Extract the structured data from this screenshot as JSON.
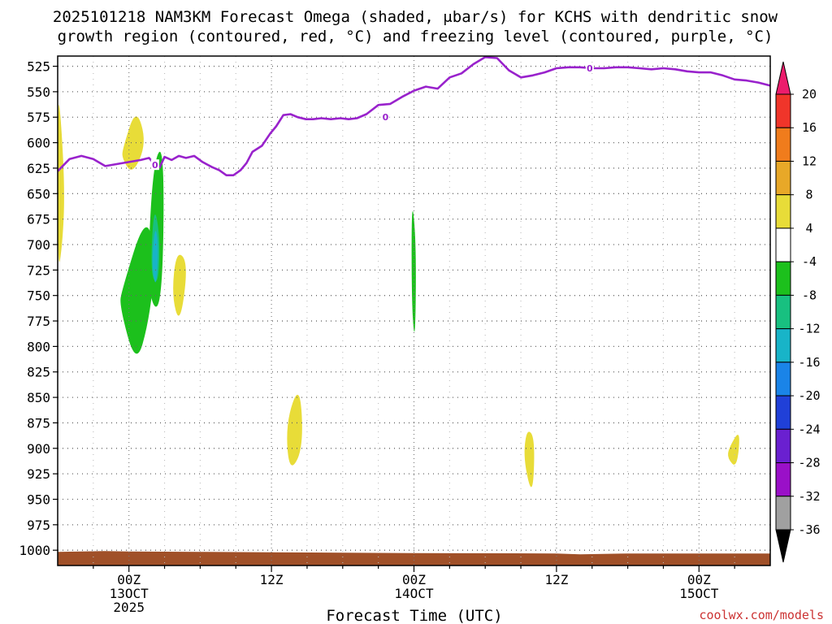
{
  "chart_data": {
    "type": "time-height contour",
    "title": "2025101218 NAM3KM Forecast Omega (shaded, μbar/s) for KCHS with dendritic snow growth region (contoured, red, °C) and freezing level (contoured, purple, °C)",
    "title_lines": [
      "2025101218 NAM3KM Forecast Omega (shaded, μbar/s) for KCHS with dendritic snow",
      "growth region (contoured, red, °C) and freezing level (contoured, purple, °C)"
    ],
    "xlabel": "Forecast Time (UTC)",
    "xlim_hours": [
      18,
      78
    ],
    "ylim_hpa": [
      1015,
      515
    ],
    "x_ticks": [
      {
        "hour": 24,
        "label": "00Z",
        "sub": "13OCT",
        "sub2": "2025"
      },
      {
        "hour": 36,
        "label": "12Z",
        "sub": "",
        "sub2": ""
      },
      {
        "hour": 48,
        "label": "00Z",
        "sub": "14OCT",
        "sub2": ""
      },
      {
        "hour": 60,
        "label": "12Z",
        "sub": "",
        "sub2": ""
      },
      {
        "hour": 72,
        "label": "00Z",
        "sub": "15OCT",
        "sub2": ""
      }
    ],
    "y_ticks": [
      525,
      550,
      575,
      600,
      625,
      650,
      675,
      700,
      725,
      750,
      775,
      800,
      825,
      850,
      875,
      900,
      925,
      950,
      975,
      1000
    ],
    "colorbar": {
      "labels": [
        "20",
        "16",
        "12",
        "8",
        "4",
        "-4",
        "-8",
        "-12",
        "-16",
        "-20",
        "-24",
        "-28",
        "-32",
        "-36"
      ],
      "colors": [
        "#ec1c6c",
        "#f0352a",
        "#f07c1c",
        "#e8a828",
        "#e8dc38",
        "#ffffff",
        "#1cc01c",
        "#18c080",
        "#18b4c8",
        "#1a84e8",
        "#2040d8",
        "#6a20d0",
        "#9a10c8",
        "#a0a0a0",
        "#000000"
      ]
    },
    "freezing_level": {
      "label": "0",
      "color": "#9922cc",
      "hours": [
        18,
        19,
        20,
        21,
        22,
        23,
        24,
        25,
        25.7,
        26.2,
        26.6,
        27,
        27.6,
        28.2,
        28.8,
        29.5,
        30.2,
        31,
        31.6,
        32.2,
        32.8,
        33.4,
        33.9,
        34.4,
        35.2,
        35.9,
        36.4,
        37,
        37.6,
        38.2,
        38.9,
        39.5,
        40.2,
        41,
        41.8,
        42.5,
        43.2,
        44,
        45,
        46,
        47,
        48,
        49,
        50,
        51,
        52,
        53,
        54,
        55,
        56,
        57,
        58,
        59,
        60,
        61,
        62,
        63,
        64,
        65,
        66,
        67,
        68,
        69,
        70,
        71,
        72,
        73,
        74,
        75,
        76,
        77,
        78
      ],
      "hpa": [
        628,
        616,
        613,
        616,
        623,
        621,
        619,
        617,
        615,
        622,
        624,
        614,
        617,
        613,
        615,
        613,
        619,
        624,
        627,
        632,
        632,
        627,
        620,
        609,
        603,
        591,
        584,
        573,
        572,
        575,
        577,
        577,
        576,
        577,
        576,
        577,
        576,
        572,
        563,
        562,
        555,
        549,
        545,
        547,
        536,
        532,
        523,
        516,
        517,
        529,
        536,
        534,
        531,
        527,
        526,
        526,
        527,
        527,
        526,
        526,
        527,
        528,
        527,
        528,
        530,
        531,
        531,
        534,
        538,
        539,
        541,
        544
      ],
      "label_points": [
        {
          "hour": 26.2,
          "hpa": 622
        },
        {
          "hour": 45.6,
          "hpa": 575
        },
        {
          "hour": 62.8,
          "hpa": 527
        }
      ]
    },
    "omega_regions": [
      {
        "bin": "4 to 8",
        "color": "#e8dc38",
        "hours": [
          18,
          18.3,
          18.6,
          18.4,
          18.0
        ],
        "hpa": [
          550,
          580,
          650,
          700,
          730
        ]
      },
      {
        "bin": "4 to 8",
        "color": "#e8dc38",
        "hours": [
          23.5,
          24.6,
          25.5,
          24.3,
          23.4
        ],
        "hpa": [
          605,
          565,
          600,
          632,
          615
        ]
      },
      {
        "bin": "-4 to -8",
        "color": "#1cc01c",
        "hours": [
          23.4,
          25.4,
          26.3,
          25.7,
          24.6,
          23.2
        ],
        "hpa": [
          745,
          670,
          710,
          775,
          820,
          760
        ]
      },
      {
        "bin": "-4 to -8",
        "color": "#1cc01c",
        "hours": [
          26.0,
          27.0,
          26.8,
          25.5
        ],
        "hpa": [
          620,
          600,
          770,
          750
        ]
      },
      {
        "bin": "-8 to -12",
        "color": "#18c080",
        "hours": [
          26.1,
          26.6,
          26.5,
          25.8
        ],
        "hpa": [
          660,
          690,
          740,
          730
        ]
      },
      {
        "bin": "-12 to -16",
        "color": "#18b4c8",
        "hours": [
          26.2,
          26.5,
          26.3,
          25.9
        ],
        "hpa": [
          680,
          700,
          745,
          720
        ]
      },
      {
        "bin": "4 to 8",
        "color": "#e8dc38",
        "hours": [
          28.0,
          29.0,
          28.3,
          27.6
        ],
        "hpa": [
          705,
          718,
          780,
          750
        ]
      },
      {
        "bin": "4 to 8",
        "color": "#e8dc38",
        "hours": [
          37.2,
          38.4,
          38.7,
          37.5
        ],
        "hpa": [
          875,
          835,
          900,
          925
        ]
      },
      {
        "bin": "-4 to -8",
        "color": "#1cc01c",
        "hours": [
          47.8,
          48.2,
          48.1,
          47.8
        ],
        "hpa": [
          650,
          700,
          800,
          760
        ]
      },
      {
        "bin": "4 to 8",
        "color": "#e8dc38",
        "hours": [
          57.5,
          58.2,
          58.0,
          57.2
        ],
        "hpa": [
          880,
          890,
          950,
          910
        ]
      },
      {
        "bin": "4 to 8",
        "color": "#e8dc38",
        "hours": [
          74.5,
          75.5,
          75.2,
          74.4
        ],
        "hpa": [
          900,
          880,
          920,
          910
        ]
      }
    ],
    "terrain_color": "#a05028"
  },
  "watermark": "coolwx.com/models"
}
